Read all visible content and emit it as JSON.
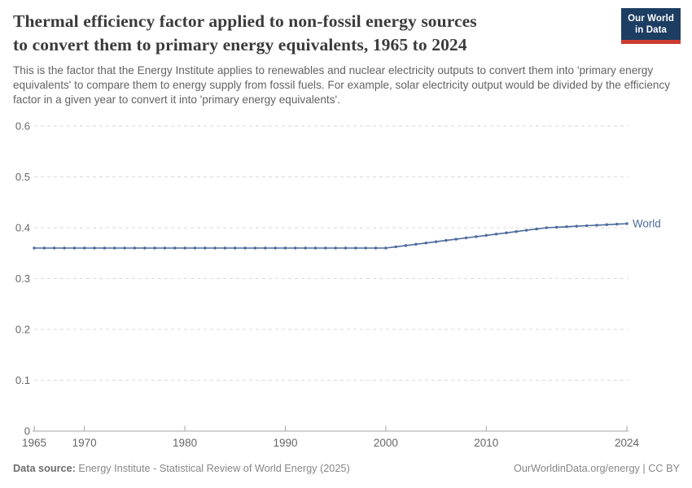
{
  "header": {
    "title_lines": [
      "Thermal efficiency factor applied to non-fossil energy sources",
      "to convert them to primary energy equivalents, 1965 to 2024"
    ],
    "subtitle": "This is the factor that the Energy Institute applies to renewables and nuclear electricity outputs to convert them into 'primary energy equivalents' to compare them to energy supply from fossil fuels. For example, solar electricity output would be divided by the efficiency factor in a given year to convert it into 'primary energy equivalents'."
  },
  "logo": {
    "line1": "Our World",
    "line2": "in Data",
    "bg_color": "#1d3d63",
    "stripe_color": "#cc3c33"
  },
  "chart_data": {
    "type": "line",
    "title": "Thermal efficiency factor applied to non-fossil energy sources to convert them to primary energy equivalents, 1965 to 2024",
    "xlabel": "",
    "ylabel": "",
    "xlim": [
      1965,
      2024
    ],
    "ylim": [
      0,
      0.6
    ],
    "x_ticks": [
      1965,
      1970,
      1980,
      1990,
      2000,
      2010,
      2024
    ],
    "y_ticks": [
      0,
      0.1,
      0.2,
      0.3,
      0.4,
      0.5,
      0.6
    ],
    "grid": "horizontal-dashed",
    "legend_position": "line-end-label",
    "axis_label_color": "#666666",
    "gridline_color": "#dadada",
    "axis_line_color": "#a3a3a3",
    "series": [
      {
        "name": "World",
        "color": "#4c6a9c",
        "years": [
          1965,
          1966,
          1967,
          1968,
          1969,
          1970,
          1971,
          1972,
          1973,
          1974,
          1975,
          1976,
          1977,
          1978,
          1979,
          1980,
          1981,
          1982,
          1983,
          1984,
          1985,
          1986,
          1987,
          1988,
          1989,
          1990,
          1991,
          1992,
          1993,
          1994,
          1995,
          1996,
          1997,
          1998,
          1999,
          2000,
          2001,
          2002,
          2003,
          2004,
          2005,
          2006,
          2007,
          2008,
          2009,
          2010,
          2011,
          2012,
          2013,
          2014,
          2015,
          2016,
          2017,
          2018,
          2019,
          2020,
          2021,
          2022,
          2023,
          2024
        ],
        "values": [
          0.36,
          0.36,
          0.36,
          0.36,
          0.36,
          0.36,
          0.36,
          0.36,
          0.36,
          0.36,
          0.36,
          0.36,
          0.36,
          0.36,
          0.36,
          0.36,
          0.36,
          0.36,
          0.36,
          0.36,
          0.36,
          0.36,
          0.36,
          0.36,
          0.36,
          0.36,
          0.36,
          0.36,
          0.36,
          0.36,
          0.36,
          0.36,
          0.36,
          0.36,
          0.36,
          0.36,
          0.3625,
          0.365,
          0.3675,
          0.37,
          0.3725,
          0.375,
          0.3775,
          0.38,
          0.3825,
          0.385,
          0.3875,
          0.39,
          0.3925,
          0.395,
          0.3975,
          0.4,
          0.401,
          0.402,
          0.403,
          0.404,
          0.405,
          0.406,
          0.407,
          0.408
        ]
      }
    ]
  },
  "footer": {
    "data_source_label": "Data source:",
    "data_source_value": "Energy Institute - Statistical Review of World Energy (2025)",
    "credit": "OurWorldinData.org/energy | CC BY"
  }
}
